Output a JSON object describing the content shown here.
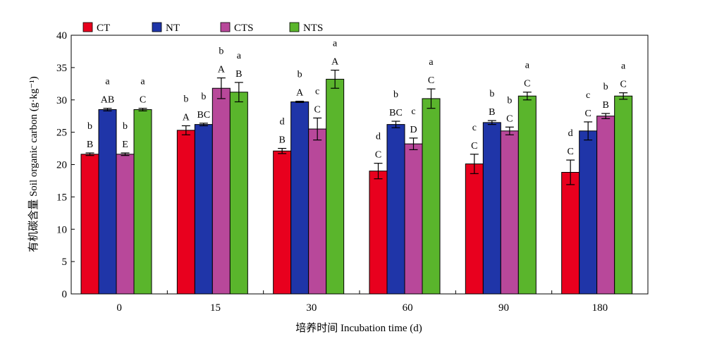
{
  "chart_data": {
    "type": "bar",
    "title": "",
    "xlabel": "培养时间 Incubation time (d)",
    "ylabel": "有机碳含量 Soil organic carbon (g·kg⁻¹)",
    "ylim": [
      0,
      40
    ],
    "yticks": [
      0,
      5,
      10,
      15,
      20,
      25,
      30,
      35,
      40
    ],
    "categories": [
      "0",
      "15",
      "30",
      "60",
      "90",
      "180"
    ],
    "legend_position": "top",
    "series": [
      {
        "name": "CT",
        "color": "#e8001e",
        "values": [
          21.6,
          25.3,
          22.1,
          19.0,
          20.1,
          18.8
        ],
        "errors": [
          0.2,
          0.7,
          0.4,
          1.2,
          1.5,
          1.9
        ],
        "upper_letters": [
          "b",
          "b",
          "d",
          "d",
          "c",
          "d"
        ],
        "lower_letters": [
          "B",
          "A",
          "B",
          "C",
          "C",
          "C"
        ]
      },
      {
        "name": "NT",
        "color": "#1f35a8",
        "values": [
          28.5,
          26.2,
          29.7,
          26.2,
          26.5,
          25.2
        ],
        "errors": [
          0.2,
          0.2,
          0.1,
          0.5,
          0.3,
          1.4
        ],
        "upper_letters": [
          "a",
          "b",
          "b",
          "b",
          "b",
          "c"
        ],
        "lower_letters": [
          "AB",
          "BC",
          "A",
          "BC",
          "B",
          "C"
        ]
      },
      {
        "name": "CTS",
        "color": "#b8489a",
        "values": [
          21.6,
          31.8,
          25.5,
          23.2,
          25.2,
          27.5
        ],
        "errors": [
          0.2,
          1.6,
          1.7,
          0.9,
          0.6,
          0.4
        ],
        "upper_letters": [
          "b",
          "b",
          "c",
          "c",
          "b",
          "b"
        ],
        "lower_letters": [
          "E",
          "A",
          "C",
          "D",
          "C",
          "B"
        ]
      },
      {
        "name": "NTS",
        "color": "#5ab52c",
        "values": [
          28.5,
          31.2,
          33.2,
          30.2,
          30.6,
          30.6
        ],
        "errors": [
          0.2,
          1.5,
          1.4,
          1.5,
          0.6,
          0.5
        ],
        "upper_letters": [
          "a",
          "a",
          "a",
          "a",
          "a",
          "a"
        ],
        "lower_letters": [
          "C",
          "B",
          "A",
          "C",
          "C",
          "C"
        ]
      }
    ]
  }
}
